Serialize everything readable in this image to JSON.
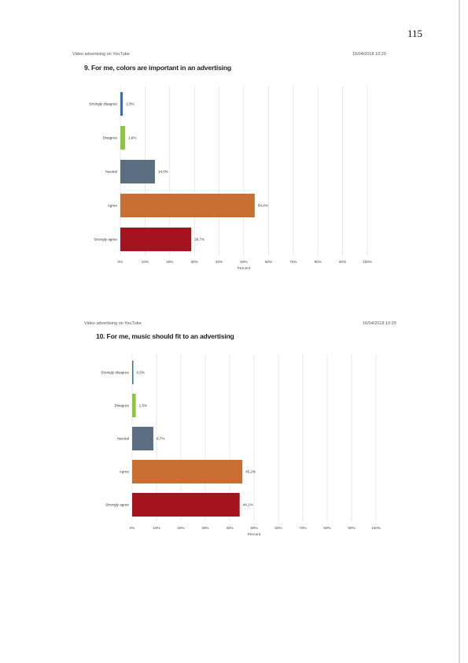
{
  "page_number": "115",
  "charts": [
    {
      "header_left": "Video advertising on YouTube",
      "header_right": "16/04/2018 10:29",
      "title": "9. For me, colors are important in an advertising"
    },
    {
      "header_left": "Video advertising on YouTube",
      "header_right": "16/04/2018 10:29",
      "title": "10. For me, music should fit to an advertising"
    }
  ],
  "chart_data": [
    {
      "type": "bar",
      "orientation": "horizontal",
      "title": "9. For me, colors are important in an advertising",
      "categories": [
        "Strongly disagree",
        "Disagree",
        "Neutral",
        "Agree",
        "Strongly agree"
      ],
      "values": [
        1.0,
        1.9,
        14.0,
        54.4,
        28.7
      ],
      "value_labels": [
        "1,0%",
        "1,9%",
        "14,0%",
        "54,4%",
        "28,7%"
      ],
      "colors": [
        "#3b6fb0",
        "#8dc63f",
        "#5b6e82",
        "#c76f33",
        "#a3141f"
      ],
      "xlabel": "Percent",
      "xlim": [
        0,
        100
      ],
      "xticks": [
        "0%",
        "10%",
        "20%",
        "30%",
        "40%",
        "50%",
        "60%",
        "70%",
        "80%",
        "90%",
        "100%"
      ],
      "grid": true
    },
    {
      "type": "bar",
      "orientation": "horizontal",
      "title": "10. For me, music should fit to an advertising",
      "categories": [
        "Strongly disagree",
        "Disagree",
        "Neutral",
        "Agree",
        "Strongly agree"
      ],
      "values": [
        0.5,
        1.5,
        8.7,
        45.2,
        44.1
      ],
      "value_labels": [
        "0,5%",
        "1,5%",
        "8,7%",
        "45,2%",
        "44,1%"
      ],
      "colors": [
        "#3b6fb0",
        "#8dc63f",
        "#5b6e82",
        "#c76f33",
        "#a3141f"
      ],
      "xlabel": "Percent",
      "xlim": [
        0,
        100
      ],
      "xticks": [
        "0%",
        "10%",
        "20%",
        "30%",
        "40%",
        "50%",
        "60%",
        "70%",
        "80%",
        "90%",
        "100%"
      ],
      "grid": true
    }
  ]
}
